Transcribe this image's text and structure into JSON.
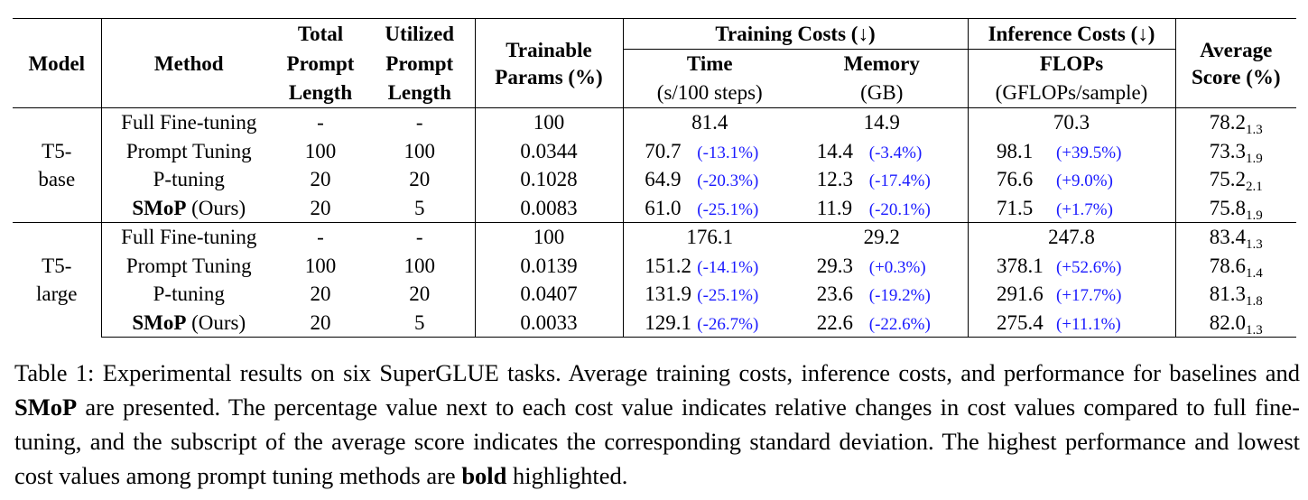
{
  "table": {
    "header": {
      "model": "Model",
      "method": "Method",
      "total_prompt_length": [
        "Total",
        "Prompt",
        "Length"
      ],
      "utilized_prompt_length": [
        "Utilized",
        "Prompt",
        "Length"
      ],
      "trainable_params": [
        "Trainable",
        "Params (%)"
      ],
      "training_costs": "Training Costs (↓)",
      "inference_costs": "Inference Costs (↓)",
      "average_score": [
        "Average",
        "Score (%)"
      ],
      "time": "Time",
      "time_unit": "(s/100 steps)",
      "memory": "Memory",
      "memory_unit": "(GB)",
      "flops": "FLOPs",
      "flops_unit": "(GFLOPs/sample)"
    },
    "groups": [
      {
        "model": [
          "T5-",
          "base"
        ],
        "rows": [
          {
            "method": "Full Fine-tuning",
            "method_bold": "",
            "method_suffix": "",
            "total": "-",
            "utilized": "-",
            "params": "100",
            "time": "81.4",
            "time_delta": "",
            "memory": "14.9",
            "memory_delta": "",
            "flops": "70.3",
            "flops_delta": "",
            "score": "78.2",
            "score_std": "1.3"
          },
          {
            "method": "Prompt Tuning",
            "method_bold": "",
            "method_suffix": "",
            "total": "100",
            "utilized": "100",
            "params": "0.0344",
            "time": "70.7",
            "time_delta": "(-13.1%)",
            "memory": "14.4",
            "memory_delta": "(-3.4%)",
            "flops": "98.1",
            "flops_delta": "(+39.5%)",
            "score": "73.3",
            "score_std": "1.9"
          },
          {
            "method": "P-tuning",
            "method_bold": "",
            "method_suffix": "",
            "total": "20",
            "utilized": "20",
            "params": "0.1028",
            "time": "64.9",
            "time_delta": "(-20.3%)",
            "memory": "12.3",
            "memory_delta": "(-17.4%)",
            "flops": "76.6",
            "flops_delta": "(+9.0%)",
            "score": "75.2",
            "score_std": "2.1"
          },
          {
            "method": "",
            "method_bold": "SMoP",
            "method_suffix": " (Ours)",
            "total": "20",
            "utilized": "5",
            "params": "0.0083",
            "time": "61.0",
            "time_delta": "(-25.1%)",
            "memory": "11.9",
            "memory_delta": "(-20.1%)",
            "flops": "71.5",
            "flops_delta": "(+1.7%)",
            "score": "75.8",
            "score_std": "1.9"
          }
        ]
      },
      {
        "model": [
          "T5-",
          "large"
        ],
        "rows": [
          {
            "method": "Full Fine-tuning",
            "method_bold": "",
            "method_suffix": "",
            "total": "-",
            "utilized": "-",
            "params": "100",
            "time": "176.1",
            "time_delta": "",
            "memory": "29.2",
            "memory_delta": "",
            "flops": "247.8",
            "flops_delta": "",
            "score": "83.4",
            "score_std": "1.3"
          },
          {
            "method": "Prompt Tuning",
            "method_bold": "",
            "method_suffix": "",
            "total": "100",
            "utilized": "100",
            "params": "0.0139",
            "time": "151.2",
            "time_delta": "(-14.1%)",
            "memory": "29.3",
            "memory_delta": "(+0.3%)",
            "flops": "378.1",
            "flops_delta": "(+52.6%)",
            "score": "78.6",
            "score_std": "1.4"
          },
          {
            "method": "P-tuning",
            "method_bold": "",
            "method_suffix": "",
            "total": "20",
            "utilized": "20",
            "params": "0.0407",
            "time": "131.9",
            "time_delta": "(-25.1%)",
            "memory": "23.6",
            "memory_delta": "(-19.2%)",
            "flops": "291.6",
            "flops_delta": "(+17.7%)",
            "score": "81.3",
            "score_std": "1.8"
          },
          {
            "method": "",
            "method_bold": "SMoP",
            "method_suffix": " (Ours)",
            "total": "20",
            "utilized": "5",
            "params": "0.0033",
            "time": "129.1",
            "time_delta": "(-26.7%)",
            "memory": "22.6",
            "memory_delta": "(-22.6%)",
            "flops": "275.4",
            "flops_delta": "(+11.1%)",
            "score": "82.0",
            "score_std": "1.3"
          }
        ]
      }
    ]
  },
  "caption": {
    "part1": "Table 1: Experimental results on six SuperGLUE tasks. Average training costs, inference costs, and performance for baselines and ",
    "smop": "SMoP",
    "part2": " are presented. The percentage value next to each cost value indicates relative changes in cost values compared to full fine-tuning, and the subscript of the average score indicates the corresponding standard deviation. The highest performance and lowest cost values among prompt tuning methods are ",
    "bold_word": "bold",
    "part3": " highlighted."
  },
  "colors": {
    "delta_text": "#1a1aff",
    "rules": "#000000"
  }
}
